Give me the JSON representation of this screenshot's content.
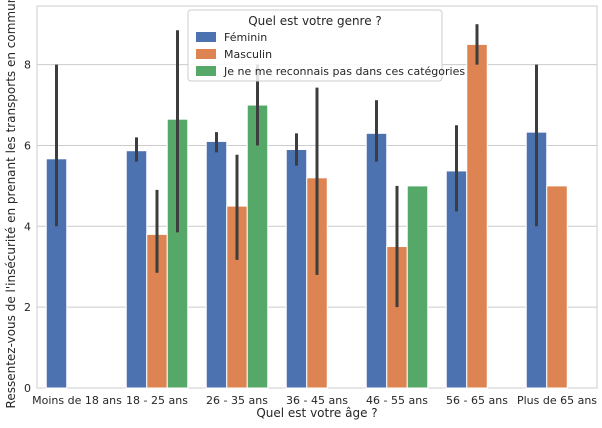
{
  "chart_data": {
    "type": "bar",
    "xlabel": "Quel est votre âge ?",
    "ylabel": "Ressentez-vous de l'insécurité en prenant les transports en commun ?",
    "ylim": [
      0,
      9.45
    ],
    "yticks": [
      0,
      2,
      4,
      6,
      8
    ],
    "grid": "horizontal",
    "legend": {
      "title": "Quel est votre genre ?",
      "placement": "top-center"
    },
    "categories": [
      "Moins de 18 ans",
      "18 - 25 ans",
      "26 - 35 ans",
      "36 - 45 ans",
      "46 - 55 ans",
      "56 - 65 ans",
      "Plus de 65 ans"
    ],
    "series": [
      {
        "name": "Féminin",
        "color": "#4c72b0",
        "values": [
          5.67,
          5.87,
          6.1,
          5.9,
          6.3,
          5.37,
          6.33
        ],
        "ci": [
          [
            4.0,
            8.0
          ],
          [
            5.6,
            6.2
          ],
          [
            5.83,
            6.33
          ],
          [
            5.5,
            6.3
          ],
          [
            5.6,
            7.12
          ],
          [
            4.37,
            6.5
          ],
          [
            4.0,
            8.0
          ]
        ]
      },
      {
        "name": "Masculin",
        "color": "#dd8452",
        "values": [
          null,
          3.8,
          4.5,
          5.2,
          3.5,
          8.5,
          5.0
        ],
        "ci": [
          null,
          [
            2.85,
            4.9
          ],
          [
            3.17,
            5.77
          ],
          [
            2.8,
            7.43
          ],
          [
            2.0,
            5.0
          ],
          [
            8.0,
            9.0
          ],
          null
        ]
      },
      {
        "name": "Je ne me reconnais pas dans ces catégories",
        "color": "#55a868",
        "values": [
          null,
          6.65,
          7.0,
          null,
          5.0,
          null,
          null
        ],
        "ci": [
          null,
          [
            3.85,
            8.85
          ],
          [
            6.0,
            8.0
          ],
          null,
          null,
          null,
          null
        ]
      }
    ]
  }
}
